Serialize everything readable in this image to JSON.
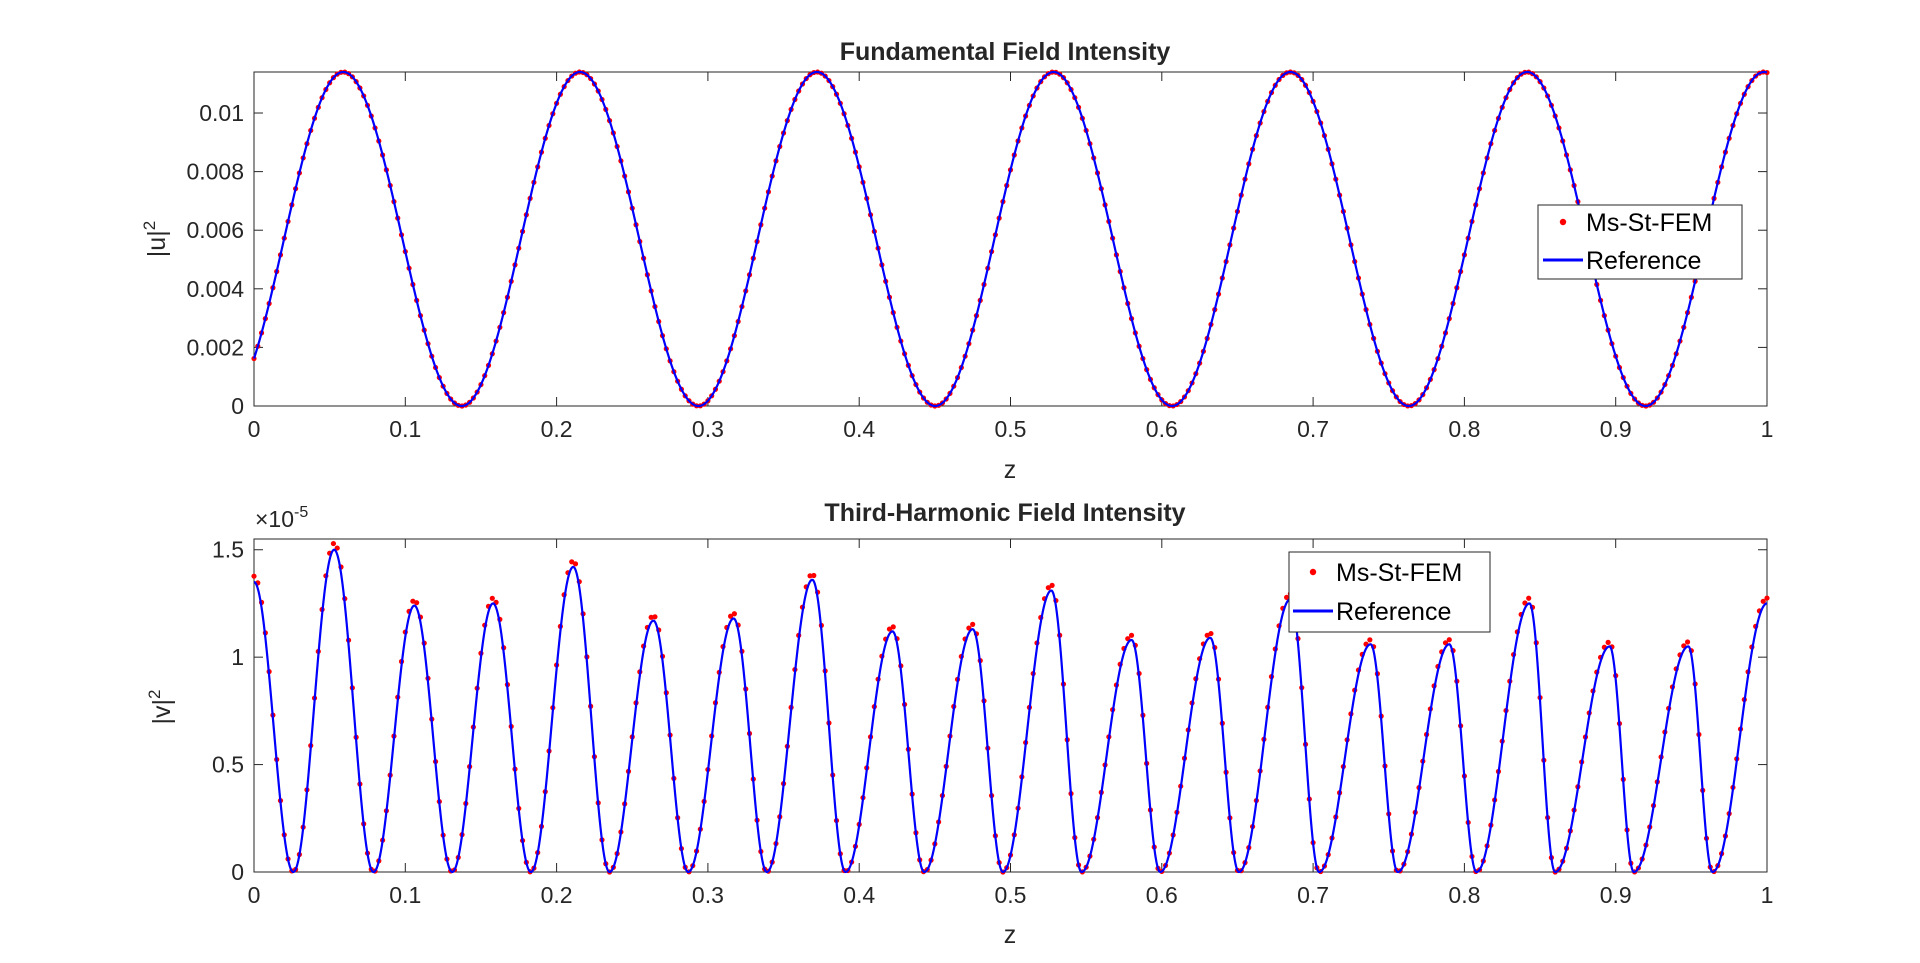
{
  "chart_data": [
    {
      "type": "line",
      "title": "Fundamental Field Intensity",
      "xlabel": "z",
      "ylabel": "|u|",
      "ylabel_sup": "2",
      "xlim": [
        0,
        1
      ],
      "ylim": [
        0,
        0.0114
      ],
      "xticks": [
        0,
        0.1,
        0.2,
        0.3,
        0.4,
        0.5,
        0.6,
        0.7,
        0.8,
        0.9,
        1
      ],
      "xtick_labels": [
        "0",
        "0.1",
        "0.2",
        "0.3",
        "0.4",
        "0.5",
        "0.6",
        "0.7",
        "0.8",
        "0.9",
        "1"
      ],
      "yticks": [
        0,
        0.002,
        0.004,
        0.006,
        0.008,
        0.01
      ],
      "ytick_labels": [
        "0",
        "0.002",
        "0.004",
        "0.006",
        "0.008",
        "0.01"
      ],
      "legend_position": "right",
      "series": [
        {
          "name": "Ms-St-FEM",
          "style": "markers",
          "color": "#ff0000",
          "model": {
            "kind": "sin2",
            "amplitude": 0.0114,
            "period": 0.1565,
            "phase_z": 0.059
          }
        },
        {
          "name": "Reference",
          "style": "line",
          "color": "#0000ff",
          "model": {
            "kind": "sin2",
            "amplitude": 0.0114,
            "period": 0.1565,
            "phase_z": 0.059
          }
        }
      ]
    },
    {
      "type": "line",
      "title": "Third-Harmonic Field Intensity",
      "xlabel": "z",
      "ylabel": "|v|",
      "ylabel_sup": "2",
      "multiplier": "×10",
      "multiplier_exp": "-5",
      "xlim": [
        0,
        1
      ],
      "ylim": [
        0,
        1.55
      ],
      "xticks": [
        0,
        0.1,
        0.2,
        0.3,
        0.4,
        0.5,
        0.6,
        0.7,
        0.8,
        0.9,
        1
      ],
      "xtick_labels": [
        "0",
        "0.1",
        "0.2",
        "0.3",
        "0.4",
        "0.5",
        "0.6",
        "0.7",
        "0.8",
        "0.9",
        "1"
      ],
      "yticks": [
        0,
        0.5,
        1,
        1.5
      ],
      "ytick_labels": [
        "0",
        "0.5",
        "1",
        "1.5"
      ],
      "legend_position": "top-right",
      "zeros": [
        0.026,
        0.079,
        0.131,
        0.183,
        0.235,
        0.287,
        0.339,
        0.391,
        0.443,
        0.495,
        0.547,
        0.599,
        0.651,
        0.704,
        0.756,
        0.808,
        0.86,
        0.912,
        0.964
      ],
      "peaks": [
        [
          0.0,
          1.35
        ],
        [
          0.053,
          1.5
        ],
        [
          0.106,
          1.24
        ],
        [
          0.158,
          1.25
        ],
        [
          0.211,
          1.42
        ],
        [
          0.264,
          1.17
        ],
        [
          0.317,
          1.18
        ],
        [
          0.369,
          1.36
        ],
        [
          0.422,
          1.12
        ],
        [
          0.475,
          1.13
        ],
        [
          0.527,
          1.31
        ],
        [
          0.58,
          1.08
        ],
        [
          0.632,
          1.09
        ],
        [
          0.685,
          1.27
        ],
        [
          0.738,
          1.06
        ],
        [
          0.79,
          1.06
        ],
        [
          0.843,
          1.25
        ],
        [
          0.896,
          1.05
        ],
        [
          0.948,
          1.05
        ],
        [
          1.0,
          1.25
        ]
      ],
      "marker_scale": 1.02,
      "series": [
        {
          "name": "Ms-St-FEM",
          "style": "markers",
          "color": "#ff0000"
        },
        {
          "name": "Reference",
          "style": "line",
          "color": "#0000ff"
        }
      ]
    }
  ]
}
